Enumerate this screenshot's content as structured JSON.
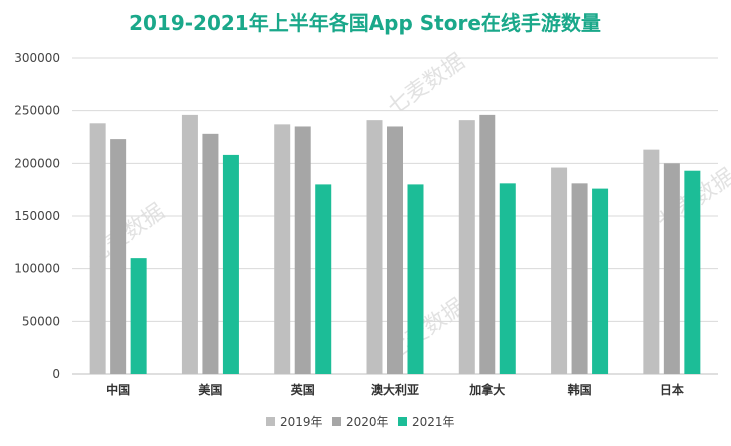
{
  "chart_data": {
    "type": "bar",
    "title": "2019-2021年上半年各国App Store在线手游数量",
    "xlabel": "",
    "ylabel": "",
    "categories": [
      "中国",
      "美国",
      "英国",
      "澳大利亚",
      "加拿大",
      "韩国",
      "日本"
    ],
    "series": [
      {
        "name": "2019年",
        "color": "#bfbfbf",
        "values": [
          238000,
          246000,
          237000,
          241000,
          241000,
          196000,
          213000
        ]
      },
      {
        "name": "2020年",
        "color": "#a6a6a6",
        "values": [
          223000,
          228000,
          235000,
          235000,
          246000,
          181000,
          200000
        ]
      },
      {
        "name": "2021年",
        "color": "#1cbd97",
        "values": [
          110000,
          208000,
          180000,
          180000,
          181000,
          176000,
          193000
        ]
      }
    ],
    "ylim": [
      0,
      300000
    ],
    "yticks": [
      "0",
      "50000",
      "100000",
      "150000",
      "200000",
      "250000",
      "300000"
    ],
    "grid": true,
    "legend_position": "bottom",
    "watermark": "七麦数据"
  }
}
